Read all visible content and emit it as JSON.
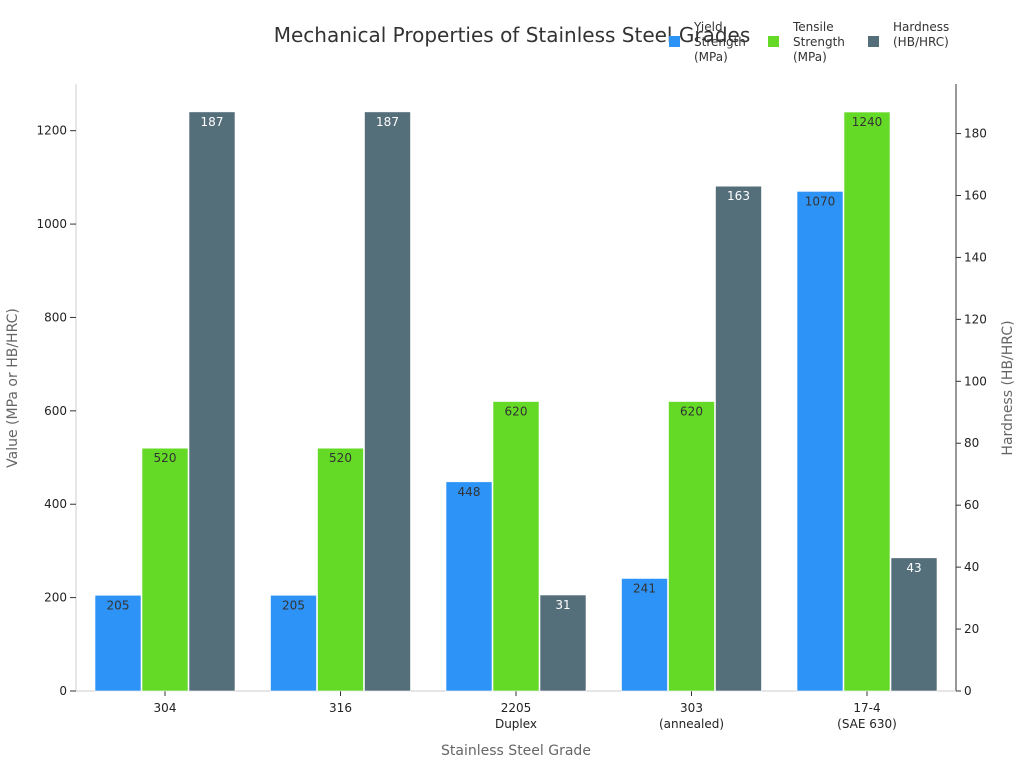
{
  "chart_data": {
    "type": "bar",
    "title": "Mechanical Properties of Stainless Steel Grades",
    "xlabel": "Stainless Steel Grade",
    "ylabel": "Value (MPa or HB/HRC)",
    "y2label": "Hardness (HB/HRC)",
    "ylim": [
      0,
      1300
    ],
    "y2lim": [
      0,
      196
    ],
    "yticks": [
      0,
      200,
      400,
      600,
      800,
      1000,
      1200
    ],
    "y2ticks": [
      0,
      20,
      40,
      60,
      80,
      100,
      120,
      140,
      160,
      180
    ],
    "grid": false,
    "legend_position": "top-right",
    "categories": [
      [
        "304"
      ],
      [
        "316"
      ],
      [
        "2205",
        "Duplex"
      ],
      [
        "303",
        "(annealed)"
      ],
      [
        "17-4",
        "(SAE 630)"
      ]
    ],
    "series": [
      {
        "name": [
          "Yield",
          "Strength",
          "(MPa)"
        ],
        "axis": "left",
        "color": "#2e93f7",
        "label_color": "#333333",
        "values": [
          205,
          205,
          448,
          241,
          1070
        ]
      },
      {
        "name": [
          "Tensile",
          "Strength",
          "(MPa)"
        ],
        "axis": "left",
        "color": "#64d926",
        "label_color": "#333333",
        "values": [
          520,
          520,
          620,
          620,
          1240
        ]
      },
      {
        "name": [
          "Hardness",
          "(HB/HRC)"
        ],
        "axis": "right",
        "color": "#546e7a",
        "label_color": "#ffffff",
        "values": [
          187,
          187,
          31,
          163,
          43
        ]
      }
    ]
  }
}
